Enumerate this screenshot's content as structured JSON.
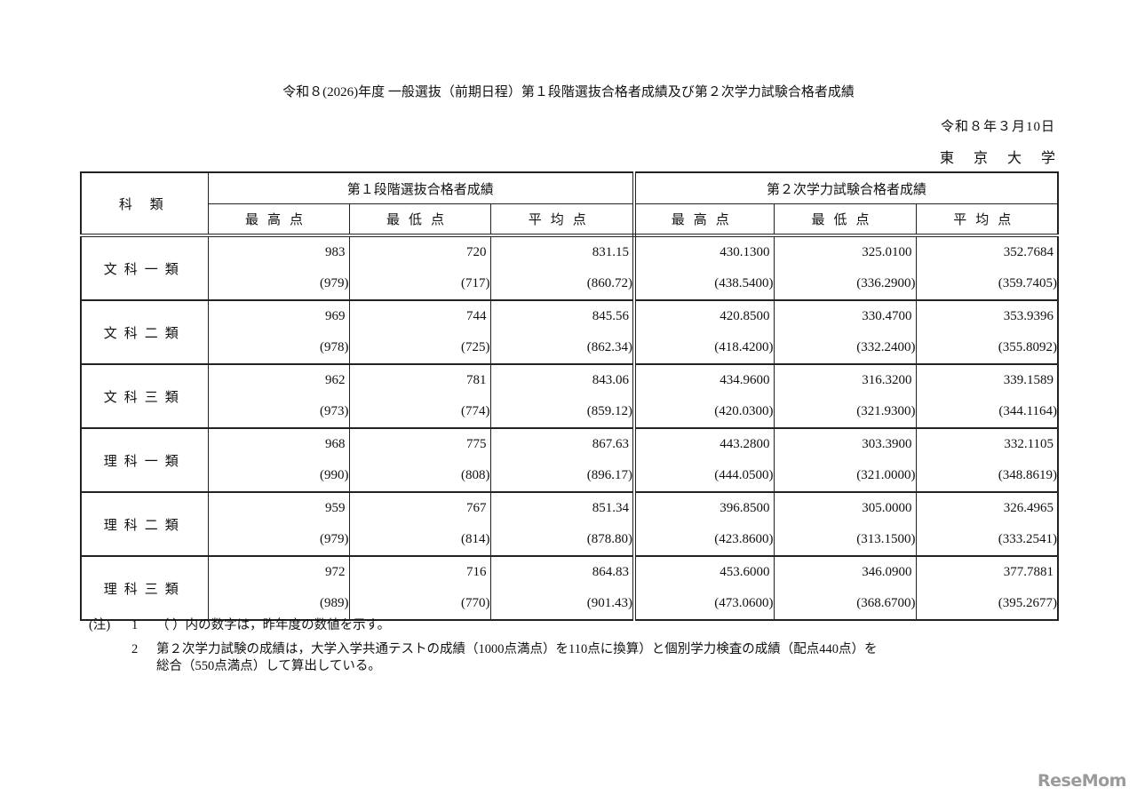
{
  "title": "令和８(2026)年度 一般選抜（前期日程）第１段階選抜合格者成績及び第２次学力試験合格者成績",
  "date": "令和８年３月10日",
  "organization": "東京大学",
  "table": {
    "category_header": "科 類",
    "group_headers": [
      "第１段階選抜合格者成績",
      "第２次学力試験合格者成績"
    ],
    "sub_headers": [
      "最高点",
      "最低点",
      "平均点",
      "最高点",
      "最低点",
      "平均点"
    ],
    "rows": [
      {
        "category": "文科一類",
        "current": [
          "983",
          "720",
          "831.15",
          "430.1300",
          "325.0100",
          "352.7684"
        ],
        "previous": [
          "(979)",
          "(717)",
          "(860.72)",
          "(438.5400)",
          "(336.2900)",
          "(359.7405)"
        ]
      },
      {
        "category": "文科二類",
        "current": [
          "969",
          "744",
          "845.56",
          "420.8500",
          "330.4700",
          "353.9396"
        ],
        "previous": [
          "(978)",
          "(725)",
          "(862.34)",
          "(418.4200)",
          "(332.2400)",
          "(355.8092)"
        ]
      },
      {
        "category": "文科三類",
        "current": [
          "962",
          "781",
          "843.06",
          "434.9600",
          "316.3200",
          "339.1589"
        ],
        "previous": [
          "(973)",
          "(774)",
          "(859.12)",
          "(420.0300)",
          "(321.9300)",
          "(344.1164)"
        ]
      },
      {
        "category": "理科一類",
        "current": [
          "968",
          "775",
          "867.63",
          "443.2800",
          "303.3900",
          "332.1105"
        ],
        "previous": [
          "(990)",
          "(808)",
          "(896.17)",
          "(444.0500)",
          "(321.0000)",
          "(348.8619)"
        ]
      },
      {
        "category": "理科二類",
        "current": [
          "959",
          "767",
          "851.34",
          "396.8500",
          "305.0000",
          "326.4965"
        ],
        "previous": [
          "(979)",
          "(814)",
          "(878.80)",
          "(423.8600)",
          "(313.1500)",
          "(333.2541)"
        ]
      },
      {
        "category": "理科三類",
        "current": [
          "972",
          "716",
          "864.83",
          "453.6000",
          "346.0900",
          "377.7881"
        ],
        "previous": [
          "(989)",
          "(770)",
          "(901.43)",
          "(473.0600)",
          "(368.6700)",
          "(395.2677)"
        ]
      }
    ]
  },
  "notes": {
    "label": "(注)",
    "items": [
      {
        "num": "1",
        "lines": [
          "（ ）内の数字は，昨年度の数値を示す。"
        ]
      },
      {
        "num": "2",
        "lines": [
          "第２次学力試験の成績は，大学入学共通テストの成績（1000点満点）を110点に換算）と個別学力検査の成績（配点440点）を",
          "総合（550点満点）して算出している。"
        ]
      }
    ]
  },
  "watermark": "ReseMom"
}
